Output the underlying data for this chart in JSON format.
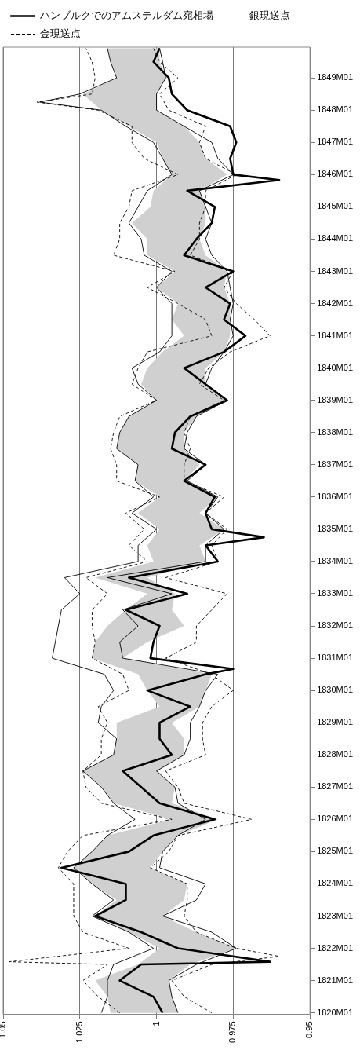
{
  "chart_data": {
    "type": "line",
    "orientation": "horizontal",
    "xlim": [
      1.05,
      0.95
    ],
    "xticks": [
      1.05,
      1.025,
      1,
      0.975,
      0.95
    ],
    "ylim": [
      "1819-12-15",
      "1849-12-15"
    ],
    "yticks": [
      {
        "value": "1820-01",
        "label": "1820M01"
      },
      {
        "value": "1821-01",
        "label": "1821M01"
      },
      {
        "value": "1822-01",
        "label": "1822M01"
      },
      {
        "value": "1823-01",
        "label": "1823M01"
      },
      {
        "value": "1824-01",
        "label": "1824M01"
      },
      {
        "value": "1825-01",
        "label": "1825M01"
      },
      {
        "value": "1826-01",
        "label": "1826M01"
      },
      {
        "value": "1827-01",
        "label": "1827M01"
      },
      {
        "value": "1828-01",
        "label": "1828M01"
      },
      {
        "value": "1829-01",
        "label": "1829M01"
      },
      {
        "value": "1830-01",
        "label": "1830M01"
      },
      {
        "value": "1831-01",
        "label": "1831M01"
      },
      {
        "value": "1832-01",
        "label": "1832M01"
      },
      {
        "value": "1833-01",
        "label": "1833M01"
      },
      {
        "value": "1834-01",
        "label": "1834M01"
      },
      {
        "value": "1835-01",
        "label": "1835M01"
      },
      {
        "value": "1836-01",
        "label": "1836M01"
      },
      {
        "value": "1837-01",
        "label": "1837M01"
      },
      {
        "value": "1838-01",
        "label": "1838M01"
      },
      {
        "value": "1839-01",
        "label": "1839M01"
      },
      {
        "value": "1840-01",
        "label": "1840M01"
      },
      {
        "value": "1841-01",
        "label": "1841M01"
      },
      {
        "value": "1842-01",
        "label": "1842M01"
      },
      {
        "value": "1843-01",
        "label": "1843M01"
      },
      {
        "value": "1844-01",
        "label": "1844M01"
      },
      {
        "value": "1845-01",
        "label": "1845M01"
      },
      {
        "value": "1846-01",
        "label": "1846M01"
      },
      {
        "value": "1847-01",
        "label": "1847M01"
      },
      {
        "value": "1848-01",
        "label": "1848M01"
      },
      {
        "value": "1849-01",
        "label": "1849M01"
      }
    ],
    "grid": "x",
    "legend": "top",
    "marker": "none",
    "series": [
      {
        "name": "ハンブルクでのアムステルダム宛相場",
        "color": "#000000",
        "x": [
          "1820-01",
          "1820-07",
          "1821-01",
          "1821-07",
          "1821-08",
          "1822-01",
          "1822-07",
          "1823-01",
          "1823-07",
          "1824-01",
          "1824-07",
          "1825-01",
          "1825-07",
          "1826-01",
          "1826-07",
          "1827-01",
          "1827-07",
          "1828-01",
          "1828-07",
          "1829-01",
          "1829-07",
          "1830-01",
          "1830-07",
          "1830-09",
          "1831-01",
          "1831-07",
          "1832-01",
          "1832-07",
          "1833-01",
          "1833-07",
          "1834-01",
          "1834-07",
          "1834-10",
          "1835-01",
          "1835-07",
          "1836-01",
          "1836-07",
          "1837-01",
          "1837-07",
          "1838-01",
          "1838-07",
          "1839-01",
          "1839-07",
          "1840-01",
          "1840-07",
          "1841-01",
          "1841-07",
          "1842-01",
          "1842-07",
          "1843-01",
          "1843-07",
          "1844-01",
          "1844-07",
          "1845-01",
          "1845-07",
          "1845-11",
          "1846-01",
          "1846-07",
          "1847-01",
          "1847-07",
          "1848-01",
          "1848-07",
          "1849-01",
          "1849-07",
          "1849-12"
        ],
        "values": [
          0.998,
          1.001,
          1.012,
          1.005,
          0.963,
          0.993,
          1.005,
          1.02,
          1.01,
          1.01,
          1.031,
          1.009,
          1.001,
          0.981,
          0.999,
          1.005,
          1.011,
          0.995,
          0.999,
          0.999,
          0.989,
          1.003,
          0.984,
          0.975,
          1.002,
          1.001,
          0.999,
          1.01,
          0.99,
          1.009,
          0.98,
          0.984,
          0.965,
          0.982,
          0.984,
          0.981,
          0.991,
          0.984,
          0.995,
          0.994,
          0.989,
          0.977,
          0.984,
          0.991,
          0.978,
          0.971,
          0.978,
          0.976,
          0.984,
          0.975,
          0.991,
          0.987,
          0.982,
          0.981,
          0.99,
          0.96,
          0.975,
          0.976,
          0.974,
          0.976,
          0.99,
          0.995,
          0.996,
          1.001,
          0.999
        ]
      },
      {
        "name": "銀現送点",
        "color": "#000000",
        "x": [
          "1820-01",
          "1820-07",
          "1821-01",
          "1821-07",
          "1822-01",
          "1822-07",
          "1823-01",
          "1823-07",
          "1824-01",
          "1824-07",
          "1825-01",
          "1825-07",
          "1826-01",
          "1826-07",
          "1827-01",
          "1827-07",
          "1828-01",
          "1828-07",
          "1829-01",
          "1829-07",
          "1830-01",
          "1830-07",
          "1831-01",
          "1831-07",
          "1832-01",
          "1832-07",
          "1833-01",
          "1833-07",
          "1834-01",
          "1834-07",
          "1835-01",
          "1835-07",
          "1836-01",
          "1836-07",
          "1837-01",
          "1837-07",
          "1838-01",
          "1838-07",
          "1839-01",
          "1839-07",
          "1840-01",
          "1840-07",
          "1841-01",
          "1841-07",
          "1842-01",
          "1842-07",
          "1843-01",
          "1843-07",
          "1844-01",
          "1844-07",
          "1845-01",
          "1845-07",
          "1846-01",
          "1846-07",
          "1847-01",
          "1847-07",
          "1848-01",
          "1848-04",
          "1848-07",
          "1849-01",
          "1849-07",
          "1849-12"
        ],
        "values": [
          1.018,
          1.016,
          1.016,
          1.014,
          1.001,
          1.009,
          1.021,
          1.014,
          1.021,
          1.027,
          1.021,
          1.016,
          1.007,
          1.014,
          1.018,
          1.024,
          1.014,
          1.013,
          1.019,
          1.018,
          1.014,
          1.017,
          1.034,
          1.033,
          1.032,
          1.031,
          1.025,
          1.03,
          1.006,
          1.006,
          1.0,
          1.008,
          1.001,
          1.007,
          1.006,
          1.013,
          1.012,
          1.009,
          1.0,
          1.006,
          1.008,
          0.999,
          0.995,
          0.995,
          0.995,
          1.0,
          0.995,
          1.004,
          1.005,
          1.009,
          1.006,
          1.003,
          0.995,
          0.998,
          1.001,
          1.01,
          1.018,
          1.038,
          1.025,
          1.013,
          1.015,
          1.016
        ]
      },
      {
        "color": "#000000",
        "x": [
          "1820-01",
          "1820-07",
          "1821-01",
          "1821-07",
          "1822-01",
          "1822-07",
          "1823-01",
          "1823-07",
          "1824-01",
          "1824-07",
          "1825-01",
          "1825-07",
          "1826-01",
          "1826-07",
          "1827-01",
          "1827-07",
          "1828-01",
          "1828-07",
          "1829-01",
          "1829-07",
          "1830-01",
          "1830-07",
          "1831-01",
          "1831-07",
          "1832-01",
          "1832-07",
          "1833-01",
          "1833-07",
          "1834-01",
          "1834-07",
          "1835-01",
          "1835-07",
          "1836-01",
          "1836-07",
          "1837-01",
          "1837-07",
          "1838-01",
          "1838-07",
          "1839-01",
          "1839-07",
          "1840-01",
          "1840-07",
          "1841-01",
          "1841-07",
          "1842-01",
          "1842-07",
          "1843-01",
          "1843-07",
          "1844-01",
          "1844-07",
          "1845-01",
          "1845-07",
          "1846-01",
          "1846-07",
          "1847-01",
          "1847-07",
          "1848-01",
          "1848-07",
          "1849-01",
          "1849-07",
          "1849-12"
        ],
        "values": [
          0.993,
          0.995,
          0.996,
          0.987,
          0.974,
          0.982,
          0.998,
          0.987,
          0.984,
          0.999,
          0.998,
          0.993,
          0.984,
          0.993,
          0.994,
          1.0,
          0.991,
          0.989,
          0.989,
          0.986,
          0.984,
          0.98,
          1.011,
          1.012,
          1.006,
          1.011,
          0.995,
          1.016,
          0.984,
          0.984,
          0.978,
          0.984,
          0.98,
          0.99,
          0.984,
          0.991,
          0.99,
          0.987,
          0.977,
          0.984,
          0.982,
          0.978,
          0.975,
          0.976,
          0.975,
          0.976,
          0.977,
          0.982,
          0.984,
          0.982,
          0.984,
          0.986,
          0.975,
          0.98,
          0.982,
          0.991,
          1.0,
          1.0,
          0.997,
          0.998,
          0.999
        ]
      },
      {
        "name": "金現送点",
        "color": "#000000",
        "line_style": "dashed",
        "x": [
          "1820-01",
          "1820-07",
          "1821-01",
          "1821-07",
          "1821-08",
          "1822-01",
          "1822-07",
          "1823-01",
          "1823-07",
          "1824-01",
          "1824-07",
          "1825-01",
          "1825-07",
          "1826-01",
          "1826-07",
          "1827-01",
          "1827-07",
          "1828-01",
          "1828-07",
          "1829-01",
          "1829-07",
          "1830-01",
          "1830-07",
          "1831-01",
          "1831-07",
          "1832-01",
          "1832-07",
          "1833-01",
          "1833-07",
          "1834-01",
          "1834-07",
          "1835-01",
          "1835-07",
          "1836-01",
          "1836-07",
          "1837-01",
          "1837-07",
          "1838-01",
          "1838-07",
          "1839-01",
          "1839-07",
          "1840-01",
          "1840-07",
          "1841-01",
          "1841-07",
          "1842-01",
          "1842-07",
          "1843-01",
          "1843-07",
          "1844-01",
          "1844-07",
          "1845-01",
          "1845-07",
          "1846-01",
          "1846-07",
          "1847-01",
          "1847-07",
          "1848-01",
          "1848-04",
          "1848-07",
          "1849-01",
          "1849-07",
          "1849-12"
        ],
        "values": [
          1.012,
          1.019,
          1.024,
          1.016,
          1.048,
          1.009,
          1.024,
          1.027,
          1.027,
          1.027,
          1.032,
          1.029,
          1.024,
          0.995,
          1.018,
          1.023,
          1.024,
          1.018,
          1.018,
          1.016,
          1.019,
          1.009,
          1.011,
          1.021,
          1.02,
          1.021,
          1.021,
          1.016,
          1.023,
          1.003,
          1.009,
          1.004,
          1.01,
          0.999,
          1.013,
          1.013,
          1.015,
          1.014,
          1.012,
          1.0,
          1.008,
          1.006,
          1.003,
          0.982,
          0.984,
          0.993,
          1.003,
          0.994,
          1.014,
          1.012,
          1.012,
          1.009,
          1.008,
          0.993,
          1.004,
          1.008,
          1.008,
          1.019,
          1.039,
          1.021,
          1.02,
          1.021,
          1.023
        ]
      },
      {
        "color": "#000000",
        "line_style": "dashed",
        "x": [
          "1820-01",
          "1820-07",
          "1821-01",
          "1821-07",
          "1821-10",
          "1822-01",
          "1822-07",
          "1823-01",
          "1823-07",
          "1824-01",
          "1824-07",
          "1825-01",
          "1825-07",
          "1826-01",
          "1826-07",
          "1827-01",
          "1827-07",
          "1828-01",
          "1828-07",
          "1829-01",
          "1829-07",
          "1830-01",
          "1830-07",
          "1831-01",
          "1831-07",
          "1832-01",
          "1832-07",
          "1833-01",
          "1833-07",
          "1834-01",
          "1834-07",
          "1835-01",
          "1835-07",
          "1836-01",
          "1836-07",
          "1837-01",
          "1837-07",
          "1838-01",
          "1838-07",
          "1839-01",
          "1839-07",
          "1840-01",
          "1840-07",
          "1841-01",
          "1841-07",
          "1842-01",
          "1842-07",
          "1843-01",
          "1843-07",
          "1844-01",
          "1844-07",
          "1845-01",
          "1845-07",
          "1846-01",
          "1846-07",
          "1847-01",
          "1847-07",
          "1848-01",
          "1848-07",
          "1849-01",
          "1849-07",
          "1849-12"
        ],
        "values": [
          0.982,
          0.991,
          0.995,
          0.982,
          0.96,
          0.974,
          0.987,
          0.991,
          0.99,
          0.99,
          1.002,
          0.996,
          0.993,
          0.969,
          0.991,
          0.993,
          0.997,
          0.984,
          0.985,
          0.985,
          0.982,
          0.975,
          0.982,
          0.997,
          0.987,
          0.987,
          0.982,
          0.977,
          0.997,
          0.98,
          0.982,
          0.977,
          0.984,
          0.978,
          0.991,
          0.991,
          0.989,
          0.991,
          0.989,
          0.978,
          0.986,
          0.983,
          0.976,
          0.963,
          0.968,
          0.974,
          0.978,
          0.975,
          0.989,
          0.986,
          0.986,
          0.984,
          0.984,
          0.974,
          0.984,
          0.986,
          0.984,
          0.996,
          0.999,
          0.993,
          0.999,
          1.001
        ]
      },
      {
        "color": "#d0d0d0",
        "x": [
          "1820-01",
          "1820-07",
          "1821-01",
          "1821-07",
          "1822-01",
          "1822-07",
          "1823-01",
          "1823-07",
          "1824-01",
          "1824-07",
          "1825-01",
          "1825-07",
          "1826-01",
          "1826-07",
          "1827-01",
          "1827-07",
          "1828-01",
          "1828-07",
          "1829-01",
          "1829-07",
          "1830-01",
          "1830-07",
          "1831-01",
          "1831-07",
          "1832-01",
          "1832-07",
          "1833-01",
          "1833-07",
          "1834-01",
          "1834-07",
          "1835-01",
          "1835-07",
          "1836-01",
          "1836-07",
          "1837-01",
          "1837-07",
          "1838-01",
          "1838-07",
          "1839-01",
          "1839-07",
          "1840-01",
          "1840-07",
          "1841-01",
          "1841-07",
          "1842-01",
          "1842-07",
          "1843-01",
          "1843-07",
          "1844-01",
          "1844-07",
          "1845-01",
          "1845-07",
          "1846-01",
          "1846-07",
          "1847-01",
          "1847-07",
          "1848-01",
          "1848-07",
          "1849-01",
          "1849-07",
          "1849-12"
        ],
        "values": [
          null,
          null,
          null,
          null,
          null,
          null,
          null,
          null,
          null,
          null,
          null,
          null,
          null,
          null,
          null,
          null,
          null,
          null,
          null,
          null,
          null,
          null,
          null,
          null,
          null,
          null,
          null,
          null,
          null,
          null,
          null,
          null,
          null,
          null,
          null,
          null,
          null,
          null,
          null,
          null,
          null,
          null,
          null,
          null,
          null,
          null,
          null,
          null,
          null,
          null,
          null,
          null,
          null,
          null,
          null,
          null,
          null,
          null,
          null,
          null,
          null
        ],
        "upper": [
          1.015,
          1.016,
          1.02,
          1.006,
          0.999,
          1.009,
          1.02,
          1.013,
          1.021,
          1.027,
          1.021,
          1.016,
          0.995,
          1.014,
          1.018,
          1.024,
          1.014,
          1.013,
          1.013,
          0.999,
          1.003,
          1.006,
          1.021,
          1.02,
          1.016,
          1.01,
          1.003,
          1.02,
          1.001,
          1.003,
          0.999,
          1.006,
          0.999,
          1.007,
          1.006,
          1.013,
          1.012,
          1.009,
          1.0,
          1.005,
          1.003,
          0.998,
          0.991,
          0.995,
          0.993,
          1.0,
          0.994,
          1.003,
          1.003,
          1.008,
          1.002,
          1.001,
          0.995,
          0.998,
          1.0,
          1.009,
          1.018,
          1.024,
          1.013,
          1.015,
          1.016
        ],
        "lower": [
          0.993,
          0.995,
          0.996,
          0.989,
          0.974,
          0.987,
          0.998,
          0.991,
          0.99,
          1.002,
          0.998,
          0.993,
          0.98,
          0.995,
          0.994,
          1.0,
          0.991,
          0.991,
          0.995,
          0.986,
          0.984,
          0.982,
          1.011,
          1.003,
          0.991,
          0.995,
          0.994,
          1.003,
          0.984,
          0.986,
          0.978,
          0.986,
          0.98,
          0.991,
          0.986,
          0.991,
          0.991,
          0.987,
          0.977,
          0.984,
          0.984,
          0.978,
          0.976,
          0.976,
          0.976,
          0.978,
          0.977,
          0.984,
          0.986,
          0.984,
          0.984,
          0.986,
          0.977,
          0.984,
          0.986,
          0.991,
          1.0,
          1.0,
          0.997,
          0.999,
          0.999
        ]
      }
    ]
  }
}
